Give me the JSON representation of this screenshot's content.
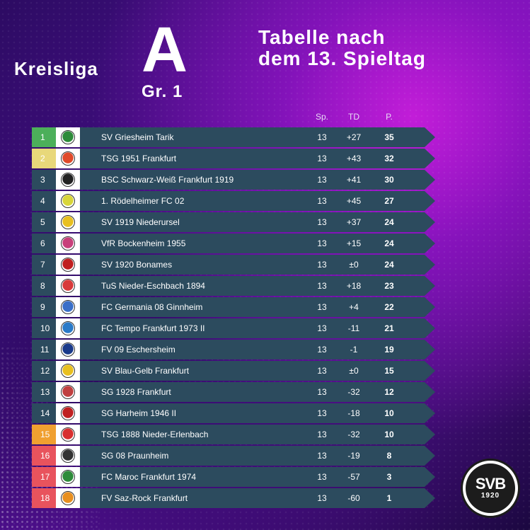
{
  "header": {
    "league_word": "Kreisliga",
    "league_letter": "A",
    "group": "Gr. 1",
    "headline_line1": "Tabelle nach",
    "headline_line2": "dem 13. Spieltag"
  },
  "columns": {
    "played": "Sp.",
    "goal_diff": "TD",
    "points": "P."
  },
  "colors": {
    "row_default": "#2c4b5e",
    "promotion": "#4caf5a",
    "relegation_playoff": "#e8d87a",
    "relegation_warning": "#f0a030",
    "relegation": "#e8535d"
  },
  "table": [
    {
      "pos": "1",
      "team": "SV Griesheim Tarik",
      "sp": "13",
      "td": "+27",
      "pts": "35",
      "pos_color": "#4caf5a",
      "logo_color": "#2e8b3a",
      "logo": "shield-icon"
    },
    {
      "pos": "2",
      "team": "TSG 1951 Frankfurt",
      "sp": "13",
      "td": "+43",
      "pts": "32",
      "pos_color": "#e8d87a",
      "logo_color": "#e04a2a",
      "logo": "shield-icon"
    },
    {
      "pos": "3",
      "team": "BSC Schwarz-Weiß Frankfurt 1919",
      "sp": "13",
      "td": "+41",
      "pts": "30",
      "pos_color": "#2c4b5e",
      "logo_color": "#222222",
      "logo": "shield-icon"
    },
    {
      "pos": "4",
      "team": "1. Rödelheimer FC 02",
      "sp": "13",
      "td": "+45",
      "pts": "27",
      "pos_color": "#2c4b5e",
      "logo_color": "#d8d63a",
      "logo": "shield-icon"
    },
    {
      "pos": "5",
      "team": "SV 1919 Niederursel",
      "sp": "13",
      "td": "+37",
      "pts": "24",
      "pos_color": "#2c4b5e",
      "logo_color": "#e8c020",
      "logo": "shield-icon"
    },
    {
      "pos": "6",
      "team": "VfR Bockenheim 1955",
      "sp": "13",
      "td": "+15",
      "pts": "24",
      "pos_color": "#2c4b5e",
      "logo_color": "#c8407a",
      "logo": "shield-icon"
    },
    {
      "pos": "7",
      "team": "SV 1920 Bonames",
      "sp": "13",
      "td": "±0",
      "pts": "24",
      "pos_color": "#2c4b5e",
      "logo_color": "#c02020",
      "logo": "shield-icon"
    },
    {
      "pos": "8",
      "team": "TuS Nieder-Eschbach 1894",
      "sp": "13",
      "td": "+18",
      "pts": "23",
      "pos_color": "#2c4b5e",
      "logo_color": "#d83a3a",
      "logo": "shield-icon"
    },
    {
      "pos": "9",
      "team": "FC Germania 08 Ginnheim",
      "sp": "13",
      "td": "+4",
      "pts": "22",
      "pos_color": "#2c4b5e",
      "logo_color": "#3a6fc8",
      "logo": "shield-icon"
    },
    {
      "pos": "10",
      "team": "FC Tempo Frankfurt 1973 II",
      "sp": "13",
      "td": "-11",
      "pts": "21",
      "pos_color": "#2c4b5e",
      "logo_color": "#2a7ac8",
      "logo": "shield-icon"
    },
    {
      "pos": "11",
      "team": "FV 09 Eschersheim",
      "sp": "13",
      "td": "-1",
      "pts": "19",
      "pos_color": "#2c4b5e",
      "logo_color": "#1a3a8a",
      "logo": "shield-icon"
    },
    {
      "pos": "12",
      "team": "SV Blau-Gelb Frankfurt",
      "sp": "13",
      "td": "±0",
      "pts": "15",
      "pos_color": "#2c4b5e",
      "logo_color": "#e8c020",
      "logo": "shield-icon"
    },
    {
      "pos": "13",
      "team": "SG 1928 Frankfurt",
      "sp": "13",
      "td": "-32",
      "pts": "12",
      "pos_color": "#2c4b5e",
      "logo_color": "#c04040",
      "logo": "shield-icon"
    },
    {
      "pos": "14",
      "team": "SG Harheim 1946 II",
      "sp": "13",
      "td": "-18",
      "pts": "10",
      "pos_color": "#2c4b5e",
      "logo_color": "#c02020",
      "logo": "shield-icon"
    },
    {
      "pos": "15",
      "team": "TSG 1888 Nieder-Erlenbach",
      "sp": "13",
      "td": "-32",
      "pts": "10",
      "pos_color": "#f0a030",
      "logo_color": "#d83030",
      "logo": "shield-icon"
    },
    {
      "pos": "16",
      "team": "SG 08 Praunheim",
      "sp": "13",
      "td": "-19",
      "pts": "8",
      "pos_color": "#e8535d",
      "logo_color": "#333333",
      "logo": "shield-icon"
    },
    {
      "pos": "17",
      "team": "FC Maroc Frankfurt 1974",
      "sp": "13",
      "td": "-57",
      "pts": "3",
      "pos_color": "#e8535d",
      "logo_color": "#2e8b3a",
      "logo": "shield-icon"
    },
    {
      "pos": "18",
      "team": "FV Saz-Rock Frankfurt",
      "sp": "13",
      "td": "-60",
      "pts": "1",
      "pos_color": "#e8535d",
      "logo_color": "#e89020",
      "logo": "shield-icon"
    }
  ],
  "badge": {
    "text": "SVB",
    "year": "1920"
  }
}
